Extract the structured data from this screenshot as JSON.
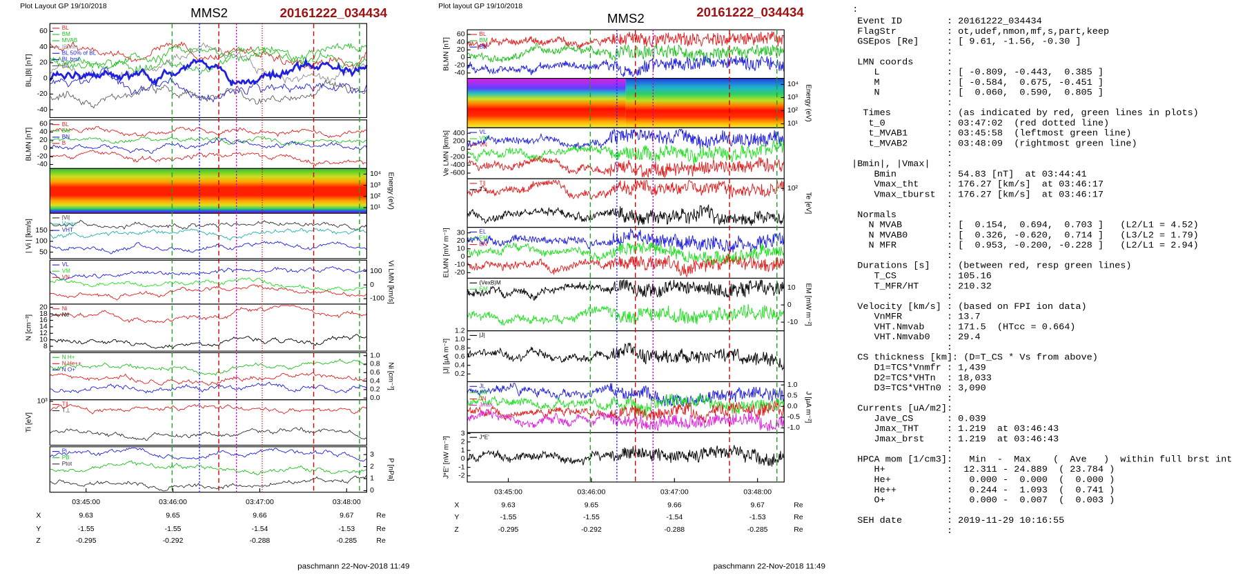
{
  "left": {
    "header": "Plot Layout GP 19/10/2018",
    "title": "MMS2",
    "event": "20161222_034434",
    "footer": "paschmann 22-Nov-2018 11:49",
    "times": [
      "03:45:00",
      "03:46:00",
      "03:47:00",
      "03:48:00"
    ],
    "ephem": [
      [
        "X",
        "9.63",
        "9.65",
        "9.66",
        "9.67",
        "Re"
      ],
      [
        "Y",
        "-1.55",
        "-1.55",
        "-1.54",
        "-1.53",
        "Re"
      ],
      [
        "Z",
        "-0.295",
        "-0.292",
        "-0.288",
        "-0.285",
        "Re"
      ]
    ],
    "panels": [
      {
        "type": "line",
        "ylabel": "BL,|B| [nT]",
        "side": "left",
        "ylim": [
          -50,
          70
        ],
        "yticks": [
          60,
          40,
          20,
          0,
          -20,
          -40
        ],
        "legend": [
          {
            "name": "BL",
            "color": "#e02020"
          },
          {
            "name": "BM",
            "color": "#20c020"
          },
          {
            "name": "MVAB",
            "color": "#20c020"
          },
          {
            "name": "|B|min",
            "color": "#909090"
          },
          {
            "name": "BL 50% of BL",
            "color": "#2020e0"
          },
          {
            "name": "BL brst",
            "color": "#2020e0"
          },
          {
            "name": "|B|",
            "color": "#606060"
          }
        ]
      },
      {
        "type": "line",
        "ylabel": "BLMN [nT]",
        "side": "left",
        "ylim": [
          -50,
          70
        ],
        "yticks": [
          60,
          40,
          20,
          0,
          -20,
          -40
        ],
        "legend": [
          {
            "name": "BL",
            "color": "#e02020"
          },
          {
            "name": "BM",
            "color": "#20c020"
          },
          {
            "name": "BN",
            "color": "#2020e0"
          },
          {
            "name": "B",
            "color": "#e02020"
          }
        ]
      },
      {
        "type": "spectrogram",
        "ylabel": "Energy (eV)",
        "side": "right",
        "ylim": [
          0.5,
          4.5
        ],
        "yticks": [
          {
            "value": 4,
            "label": "10⁴"
          },
          {
            "value": 3,
            "label": "10³"
          },
          {
            "value": 2,
            "label": "10²"
          },
          {
            "value": 1,
            "label": "10¹"
          }
        ],
        "legend": []
      },
      {
        "type": "line",
        "ylabel": "| Vi | [km/s]",
        "side": "left",
        "ylim": [
          20,
          230
        ],
        "yticks": [
          150,
          100,
          50
        ],
        "legend": [
          {
            "name": "|Vi|",
            "color": "#303030"
          },
          {
            "name": "Vmax",
            "color": "#20b0b0"
          },
          {
            "name": "VHT",
            "color": "#2020e0"
          }
        ]
      },
      {
        "type": "line",
        "ylabel": "Vi LMN [km/s]",
        "side": "right",
        "ylim": [
          -140,
          180
        ],
        "yticks": [
          100,
          0,
          -100
        ],
        "legend": [
          {
            "name": "VL",
            "color": "#2020e0"
          },
          {
            "name": "VM",
            "color": "#20e020"
          },
          {
            "name": "VN",
            "color": "#e02020"
          }
        ]
      },
      {
        "type": "line",
        "ylabel": "N [cm⁻³]",
        "side": "left",
        "ylim": [
          6.5,
          21
        ],
        "yticks": [
          20,
          18,
          16,
          14,
          12,
          10,
          8
        ],
        "legend": [
          {
            "name": "Ni",
            "color": "#e02020"
          },
          {
            "name": "Ne",
            "color": "#000000"
          }
        ]
      },
      {
        "type": "line",
        "ylabel": "Ni [cm⁻³]",
        "side": "right",
        "ylim": [
          -0.04,
          1.07
        ],
        "yticks": [
          {
            "value": 1,
            "label": "1.0"
          },
          0.8,
          0.6,
          0.4,
          0.2,
          {
            "value": 0,
            "label": "0.0"
          }
        ],
        "legend": [
          {
            "name": "N H+",
            "color": "#20c020"
          },
          {
            "name": "N He++",
            "color": "#e02020"
          },
          {
            "name": "N O+",
            "color": "#2020e0"
          }
        ]
      },
      {
        "type": "line",
        "ylabel": "Ti [eV]",
        "side": "left",
        "ylim": [
          1.6,
          3.05
        ],
        "yticks": [
          {
            "value": 3,
            "label": "10³"
          }
        ],
        "legend": [
          {
            "name": "T∥",
            "color": "#e02020"
          },
          {
            "name": "T⊥",
            "color": "#303030"
          }
        ]
      },
      {
        "type": "line",
        "ylabel": "P [nPa]",
        "side": "right",
        "ylim": [
          -0.13,
          3.65
        ],
        "yticks": [
          3,
          2,
          1,
          0
        ],
        "legend": [
          {
            "name": "Pi",
            "color": "#2020e0"
          },
          {
            "name": "PB",
            "color": "#20c020"
          },
          {
            "name": "Ptot",
            "color": "#303030"
          }
        ]
      }
    ]
  },
  "middle": {
    "header": "Plot layout GP 19/10/2018",
    "title": "MMS2",
    "event": "20161222_034434",
    "footer": "paschmann 22-Nov-2018 11:49",
    "times": [
      "03:45:00",
      "03:46:00",
      "03:47:00",
      "03:48:00"
    ],
    "ephem": [
      [
        "X",
        "9.63",
        "9.65",
        "9.66",
        "9.67",
        "Re"
      ],
      [
        "Y",
        "-1.55",
        "-1.55",
        "-1.54",
        "-1.53",
        "Re"
      ],
      [
        "Z",
        "-0.295",
        "-0.292",
        "-0.288",
        "-0.285",
        "Re"
      ]
    ],
    "panels": [
      {
        "type": "line",
        "ylabel": "BLMN [nT]",
        "side": "left",
        "ylim": [
          -54,
          72
        ],
        "yticks": [
          60,
          40,
          20,
          0,
          -20,
          -40
        ],
        "legend": [
          {
            "name": "BL",
            "color": "#e02020"
          },
          {
            "name": "BM",
            "color": "#20c020"
          },
          {
            "name": "BN",
            "color": "#2020e0"
          }
        ]
      },
      {
        "type": "spectrogram",
        "ylabel": "Energy (eV)",
        "side": "right",
        "ylim": [
          0.7,
          4.46
        ],
        "yticks": [
          {
            "value": 4,
            "label": "10⁴"
          },
          {
            "value": 3,
            "label": "10³"
          },
          {
            "value": 2,
            "label": "10²"
          },
          {
            "value": 1,
            "label": "10¹"
          }
        ],
        "legend": []
      },
      {
        "type": "line",
        "ylabel": "Ve LMN [km/s]",
        "side": "left",
        "ylim": [
          -740,
          537
        ],
        "yticks": [
          400,
          200,
          0,
          -200,
          -400,
          -600
        ],
        "legend": [
          {
            "name": "VL",
            "color": "#2020e0"
          },
          {
            "name": "VM",
            "color": "#20e020"
          },
          {
            "name": "VN",
            "color": "#e02020"
          }
        ]
      },
      {
        "type": "line",
        "ylabel": "Te [eV]",
        "side": "right",
        "ylim": [
          1.2,
          2.2
        ],
        "yticks": [
          {
            "value": 2,
            "label": "10²"
          }
        ],
        "legend": [
          {
            "name": "T∥",
            "color": "#e02020"
          },
          {
            "name": "T⊥",
            "color": "#000000"
          }
        ]
      },
      {
        "type": "line",
        "ylabel": "ELMN [mV m⁻¹]",
        "side": "left",
        "ylim": [
          -27,
          37
        ],
        "yticks": [
          30,
          20,
          10,
          0,
          -10,
          -20
        ],
        "legend": [
          {
            "name": "EL",
            "color": "#2020e0"
          },
          {
            "name": "EM",
            "color": "#20e020"
          },
          {
            "name": "EN",
            "color": "#e02020"
          }
        ]
      },
      {
        "type": "line",
        "ylabel": "EM [mW m⁻²]",
        "side": "right",
        "ylim": [
          -15,
          15.5
        ],
        "yticks": [
          10,
          0,
          -10
        ],
        "legend": [
          {
            "name": "(VexB)M",
            "color": "#000000"
          },
          {
            "name": "EM",
            "color": "#20e020"
          }
        ]
      },
      {
        "type": "line",
        "ylabel": "|J| [μA m⁻²]",
        "side": "left",
        "ylim": [
          0.02,
          1.2
        ],
        "yticks": [
          1.2,
          {
            "value": 1,
            "label": "1.0"
          },
          0.8,
          0.6,
          0.4,
          0.2
        ],
        "legend": [
          {
            "name": "|J|",
            "color": "#000000"
          }
        ]
      },
      {
        "type": "line",
        "ylabel": "J [μA m⁻²]",
        "side": "right",
        "ylim": [
          -1.22,
          1.15
        ],
        "yticks": [
          {
            "value": 1,
            "label": "1.0"
          },
          0.5,
          {
            "value": 0,
            "label": "0.0"
          },
          -0.5,
          {
            "value": -1,
            "label": "-1.0"
          }
        ],
        "legend": [
          {
            "name": "JL",
            "color": "#2020e0"
          },
          {
            "name": "JM",
            "color": "#20e020"
          },
          {
            "name": "JN",
            "color": "#e02020"
          },
          {
            "name": "Jmax",
            "color": "#e020e0"
          }
        ]
      },
      {
        "type": "line",
        "ylabel": "J*E' [nW m⁻³]",
        "side": "left",
        "ylim": [
          -2.74,
          3.1
        ],
        "yticks": [
          3,
          2,
          1,
          0,
          -1,
          -2
        ],
        "legend": [
          {
            "name": "J*E'",
            "color": "#000000"
          }
        ]
      }
    ]
  },
  "summary": {
    "corner": ":",
    "lines": [
      " Event ID        : 20161222_034434",
      " FlagStr         : ot,udef,nmon,mf,s,part,keep",
      " GSEpos [Re]     : [ 9.61, -1.56, -0.30 ]",
      "                 :",
      " LMN coords      :",
      "    L            : [ -0.809, -0.443,  0.385 ]",
      "    M            : [ -0.584,  0.675, -0.451 ]",
      "    N            : [  0.060,  0.590,  0.805 ]",
      "                 :",
      "  Times          : (as indicated by red, green lines in plots)",
      "   t_0           : 03:47:02  (red dotted line)",
      "   t_MVAB1       : 03:45:58  (leftmost green line)",
      "   t_MVAB2       : 03:48:09  (rightmost green line)",
      "                 :",
      "|Bmin|, |Vmax|   :",
      "    Bmin         : 54.83 [nT]  at 03:44:41",
      "    Vmax_tht     : 176.27 [km/s]  at 03:46:17",
      "    Vmax_tburst  : 176.27 [km/s]  at 03:46:17",
      "                 :",
      " Normals         :",
      "   N MVAB        : [  0.154,  0.694,  0.703 ]   (L2/L1 = 4.52)",
      "   N MVAB0       : [  0.326, -0.620,  0.714 ]   (L3/L2 = 1.79)",
      "   N MFR         : [  0.953, -0.200, -0.228 ]   (L2/L1 = 2.94)",
      "                 :",
      " Durations [s]   : (between red, resp green lines)",
      "    T_CS         : 105.16",
      "    T_MFR/HT     : 210.32",
      "                 :",
      " Velocity [km/s] : (based on FPI ion data)",
      "    VnMFR        : 13.7",
      "    VHT.Nmvab    : 171.5  (HTcc = 0.664)",
      "    VHT.Nmvab0   : 29.4",
      "                 :",
      " CS thickness [km]: (D=T_CS * Vs from above)",
      "    D1=TCS*Vnmfr : 1,439",
      "    D2=TCS*VHTn  : 18,033",
      "    D3=TCS*VHTn0 : 3,090",
      "                 :",
      " Currents [uA/m2]:",
      "    Jave_CS      : 0.039",
      "    Jmax_THT     : 1.219  at 03:46:43",
      "    Jmax_brst    : 1.219  at 03:46:43",
      "                 :",
      " HPCA mom [1/cm3]:   Min  -  Max    (  Ave   )  within full brst int",
      "    H+           :  12.311 - 24.889  ( 23.784 )",
      "    He+          :   0.000 -  0.000  (  0.000 )",
      "    He++         :   0.244 -  1.093  (  0.741 )",
      "    O+           :   0.000 -  0.007  (  0.003 )",
      "                 :",
      " SEH date        : 2019-11-29 10:16:55",
      "                 :"
    ]
  }
}
